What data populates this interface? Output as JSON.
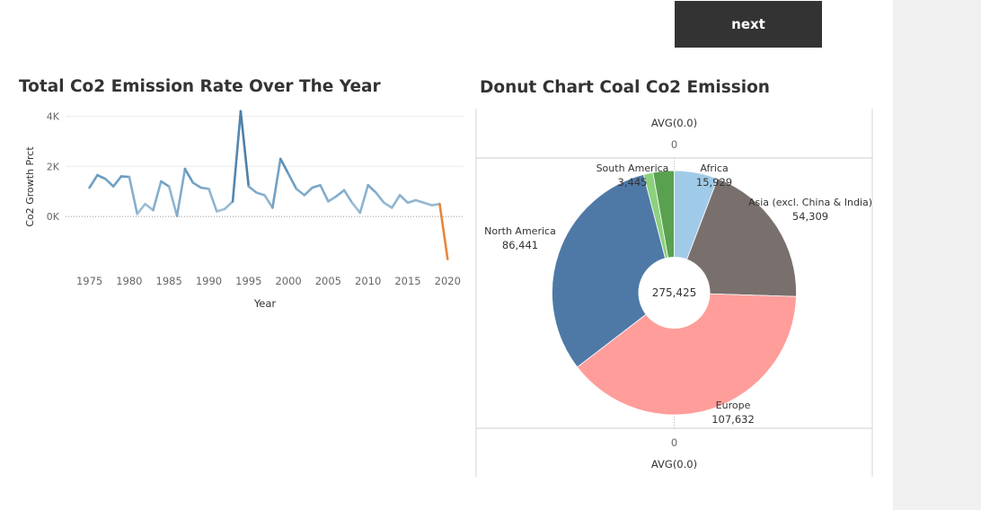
{
  "button": {
    "next_label": "next"
  },
  "colors": {
    "line_base": "#6b9cc1",
    "line_dark": "#2f5f8a",
    "line_light": "#a9c6dc",
    "line_negative": "#e8863a",
    "donut_center": "#ffffff",
    "axis_text": "#666666"
  },
  "chart_data": [
    {
      "type": "line",
      "title": "Total Co2 Emission Rate Over  The Year",
      "xlabel": "Year",
      "ylabel": "Co2 Growth Prct",
      "x_ticks": [
        1975,
        1980,
        1985,
        1990,
        1995,
        2000,
        2005,
        2010,
        2015,
        2020
      ],
      "y_ticks": [
        {
          "value": 0,
          "label": "0K"
        },
        {
          "value": 2000,
          "label": "2K"
        },
        {
          "value": 4000,
          "label": "4K"
        }
      ],
      "xlim": [
        1972,
        2022
      ],
      "ylim": [
        -2000,
        4300
      ],
      "grid": "horizontal",
      "x": [
        1975,
        1976,
        1977,
        1978,
        1979,
        1980,
        1981,
        1982,
        1983,
        1984,
        1985,
        1986,
        1987,
        1988,
        1989,
        1990,
        1991,
        1992,
        1993,
        1994,
        1995,
        1996,
        1997,
        1998,
        1999,
        2000,
        2001,
        2002,
        2003,
        2004,
        2005,
        2006,
        2007,
        2008,
        2009,
        2010,
        2011,
        2012,
        2013,
        2014,
        2015,
        2016,
        2017,
        2018,
        2019,
        2020
      ],
      "values": [
        1150,
        1650,
        1500,
        1200,
        1600,
        1580,
        100,
        500,
        250,
        1400,
        1200,
        20,
        1900,
        1350,
        1150,
        1100,
        200,
        300,
        600,
        4200,
        1200,
        950,
        850,
        350,
        2300,
        1700,
        1100,
        850,
        1150,
        1250,
        600,
        800,
        1050,
        550,
        150,
        1250,
        950,
        550,
        350,
        850,
        550,
        650,
        550,
        450,
        500,
        -1700
      ]
    },
    {
      "type": "pie",
      "title": "Donut Chart Coal Co2 Emission",
      "total_label": "275,425",
      "axis_top_label": "AVG(0.0)",
      "axis_top_tick": "0",
      "axis_bottom_tick": "0",
      "axis_bottom_label": "AVG(0.0)",
      "series": [
        {
          "name": "Africa",
          "value": 15929,
          "label": "15,929",
          "color": "#a0cbe8"
        },
        {
          "name": "Asia (excl. China & India)",
          "value": 54309,
          "label": "54,309",
          "color": "#79706e"
        },
        {
          "name": "Europe",
          "value": 107632,
          "label": "107,632",
          "color": "#ff9d9a"
        },
        {
          "name": "North America",
          "value": 86441,
          "label": "86,441",
          "color": "#4e79a7"
        },
        {
          "name": "South America",
          "value": 3445,
          "label": "3,445",
          "color": "#8cd17d"
        },
        {
          "name": "",
          "value": 7669,
          "label": "",
          "color": "#59a14f"
        }
      ]
    }
  ]
}
